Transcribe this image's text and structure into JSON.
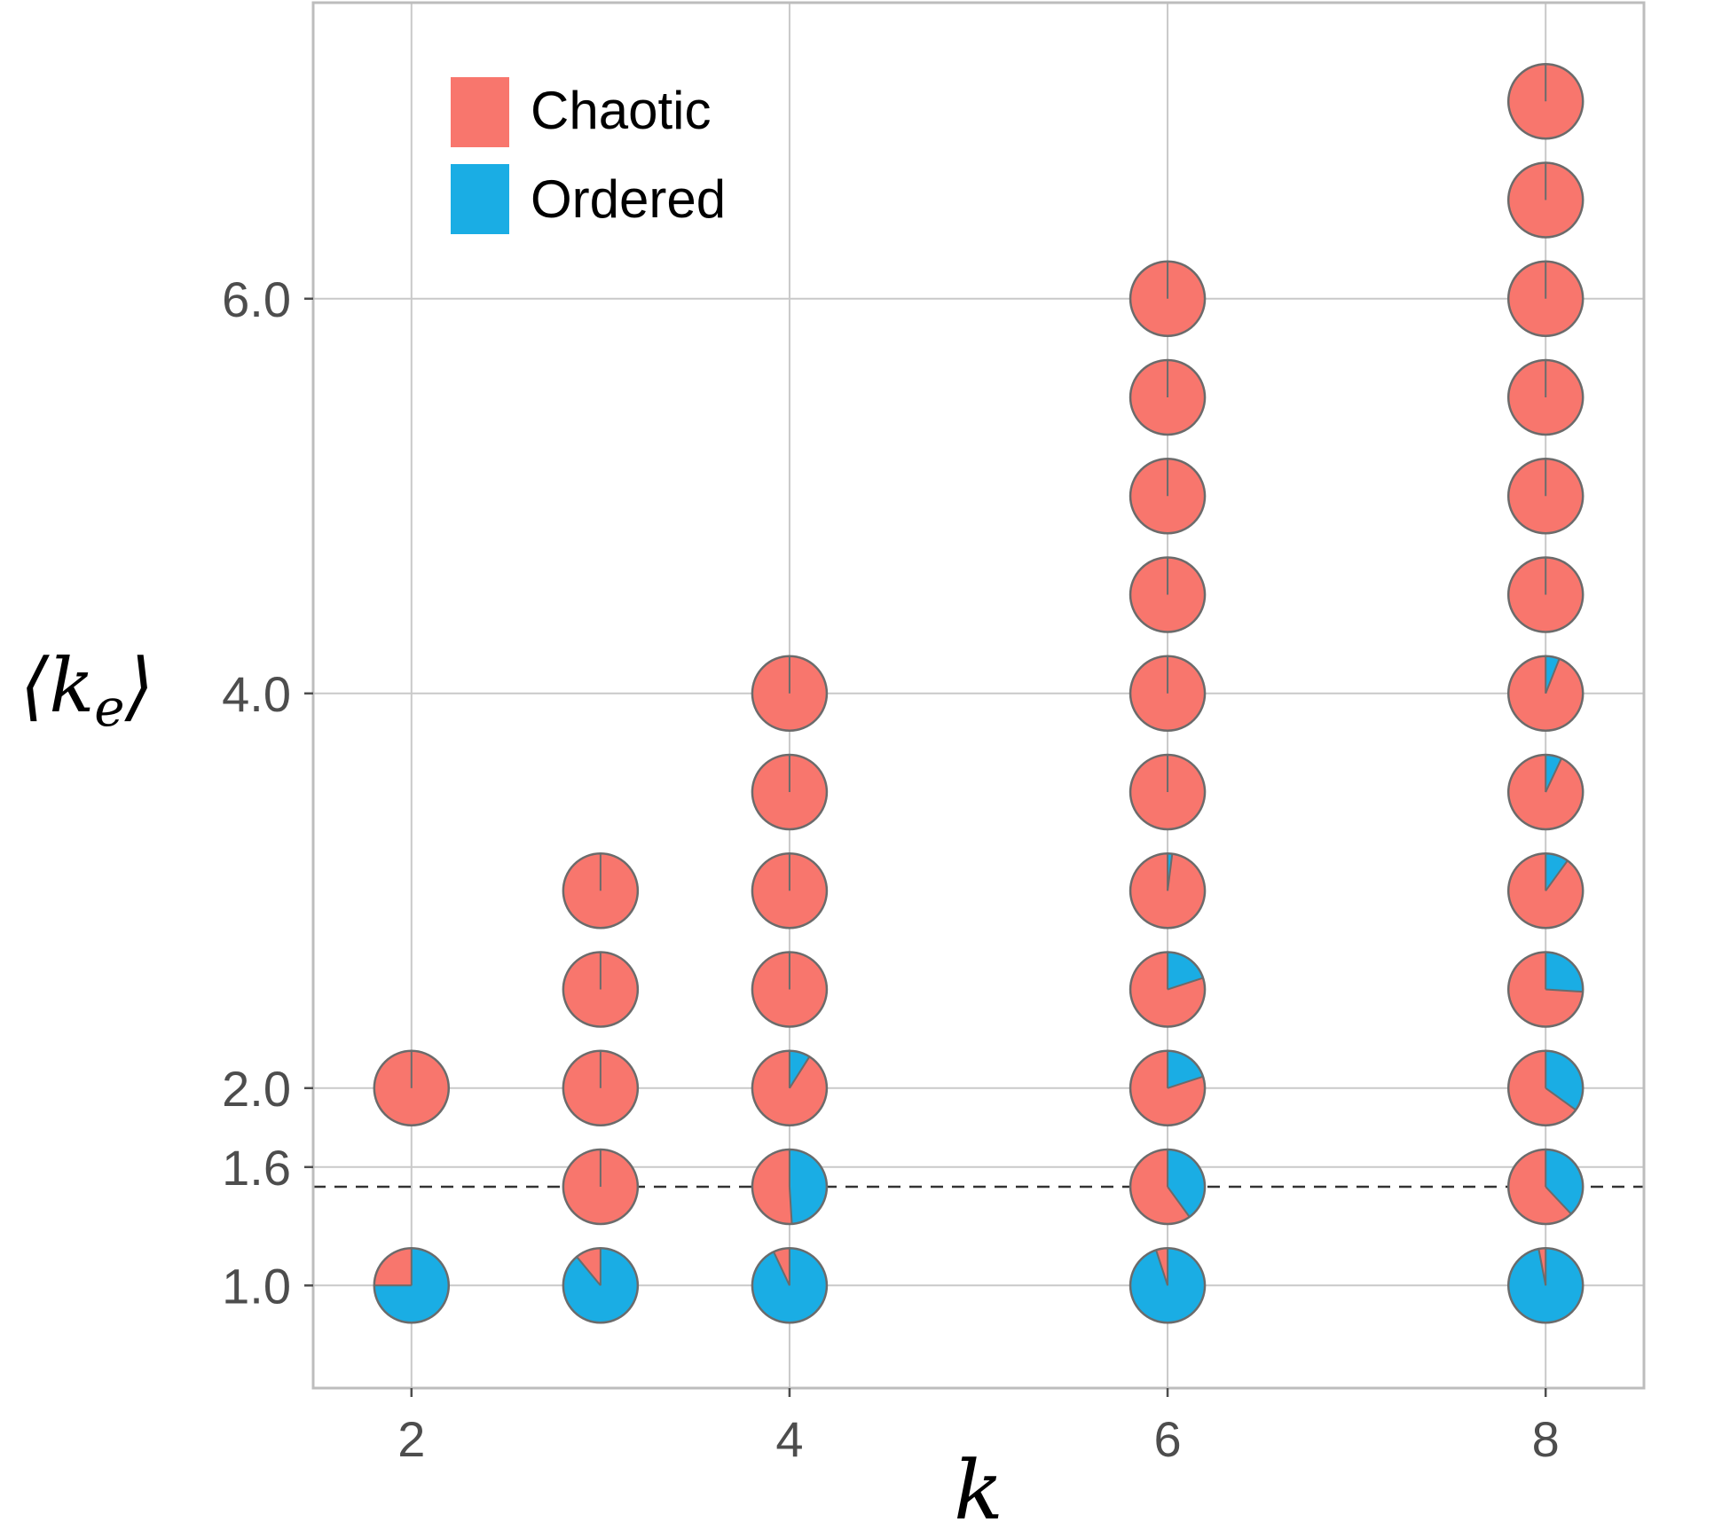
{
  "chart_data": {
    "type": "pie-scatter",
    "xlabel": "k",
    "ylabel": "⟨k",
    "ylabel_sub": "e",
    "ylabel_close": "⟩",
    "x_ticks": [
      "2",
      "4",
      "6",
      "8"
    ],
    "x_tick_values": [
      2,
      4,
      6,
      8
    ],
    "y_ticks": [
      "1.0",
      "1.6",
      "2.0",
      "4.0",
      "6.0"
    ],
    "y_tick_values": [
      1.0,
      1.6,
      2.0,
      4.0,
      6.0
    ],
    "xlim": [
      1.48,
      8.52
    ],
    "ylim": [
      0.48,
      7.5
    ],
    "grid": true,
    "reference_line": {
      "y": 1.5,
      "style": "dashed"
    },
    "legend": {
      "position": "top-left",
      "items": [
        {
          "label": "Chaotic",
          "color": "#F8766D"
        },
        {
          "label": "Ordered",
          "color": "#1AADE4"
        }
      ]
    },
    "colors": {
      "chaotic": "#F8766D",
      "ordered": "#1AADE4",
      "pie_border": "#6b6b6b"
    },
    "points": [
      {
        "k": 2,
        "ke": 1.0,
        "chaotic": 0.25,
        "ordered": 0.75
      },
      {
        "k": 2,
        "ke": 2.0,
        "chaotic": 1.0,
        "ordered": 0.0
      },
      {
        "k": 3,
        "ke": 1.0,
        "chaotic": 0.11,
        "ordered": 0.89
      },
      {
        "k": 3,
        "ke": 1.5,
        "chaotic": 1.0,
        "ordered": 0.0
      },
      {
        "k": 3,
        "ke": 2.0,
        "chaotic": 1.0,
        "ordered": 0.0
      },
      {
        "k": 3,
        "ke": 2.5,
        "chaotic": 1.0,
        "ordered": 0.0
      },
      {
        "k": 3,
        "ke": 3.0,
        "chaotic": 1.0,
        "ordered": 0.0
      },
      {
        "k": 4,
        "ke": 1.0,
        "chaotic": 0.07,
        "ordered": 0.93
      },
      {
        "k": 4,
        "ke": 1.5,
        "chaotic": 0.51,
        "ordered": 0.49
      },
      {
        "k": 4,
        "ke": 2.0,
        "chaotic": 0.91,
        "ordered": 0.09
      },
      {
        "k": 4,
        "ke": 2.5,
        "chaotic": 1.0,
        "ordered": 0.0
      },
      {
        "k": 4,
        "ke": 3.0,
        "chaotic": 1.0,
        "ordered": 0.0
      },
      {
        "k": 4,
        "ke": 3.5,
        "chaotic": 1.0,
        "ordered": 0.0
      },
      {
        "k": 4,
        "ke": 4.0,
        "chaotic": 1.0,
        "ordered": 0.0
      },
      {
        "k": 6,
        "ke": 1.0,
        "chaotic": 0.05,
        "ordered": 0.95
      },
      {
        "k": 6,
        "ke": 1.5,
        "chaotic": 0.6,
        "ordered": 0.4
      },
      {
        "k": 6,
        "ke": 2.0,
        "chaotic": 0.8,
        "ordered": 0.2
      },
      {
        "k": 6,
        "ke": 2.5,
        "chaotic": 0.8,
        "ordered": 0.2
      },
      {
        "k": 6,
        "ke": 3.0,
        "chaotic": 0.98,
        "ordered": 0.02
      },
      {
        "k": 6,
        "ke": 3.5,
        "chaotic": 1.0,
        "ordered": 0.0
      },
      {
        "k": 6,
        "ke": 4.0,
        "chaotic": 1.0,
        "ordered": 0.0
      },
      {
        "k": 6,
        "ke": 4.5,
        "chaotic": 1.0,
        "ordered": 0.0
      },
      {
        "k": 6,
        "ke": 5.0,
        "chaotic": 1.0,
        "ordered": 0.0
      },
      {
        "k": 6,
        "ke": 5.5,
        "chaotic": 1.0,
        "ordered": 0.0
      },
      {
        "k": 6,
        "ke": 6.0,
        "chaotic": 1.0,
        "ordered": 0.0
      },
      {
        "k": 8,
        "ke": 1.0,
        "chaotic": 0.03,
        "ordered": 0.97
      },
      {
        "k": 8,
        "ke": 1.5,
        "chaotic": 0.62,
        "ordered": 0.38
      },
      {
        "k": 8,
        "ke": 2.0,
        "chaotic": 0.65,
        "ordered": 0.35
      },
      {
        "k": 8,
        "ke": 2.5,
        "chaotic": 0.74,
        "ordered": 0.26
      },
      {
        "k": 8,
        "ke": 3.0,
        "chaotic": 0.9,
        "ordered": 0.1
      },
      {
        "k": 8,
        "ke": 3.5,
        "chaotic": 0.93,
        "ordered": 0.07
      },
      {
        "k": 8,
        "ke": 4.0,
        "chaotic": 0.94,
        "ordered": 0.06
      },
      {
        "k": 8,
        "ke": 4.5,
        "chaotic": 1.0,
        "ordered": 0.0
      },
      {
        "k": 8,
        "ke": 5.0,
        "chaotic": 1.0,
        "ordered": 0.0
      },
      {
        "k": 8,
        "ke": 5.5,
        "chaotic": 1.0,
        "ordered": 0.0
      },
      {
        "k": 8,
        "ke": 6.0,
        "chaotic": 1.0,
        "ordered": 0.0
      },
      {
        "k": 8,
        "ke": 6.5,
        "chaotic": 1.0,
        "ordered": 0.0
      },
      {
        "k": 8,
        "ke": 7.0,
        "chaotic": 1.0,
        "ordered": 0.0
      }
    ]
  }
}
